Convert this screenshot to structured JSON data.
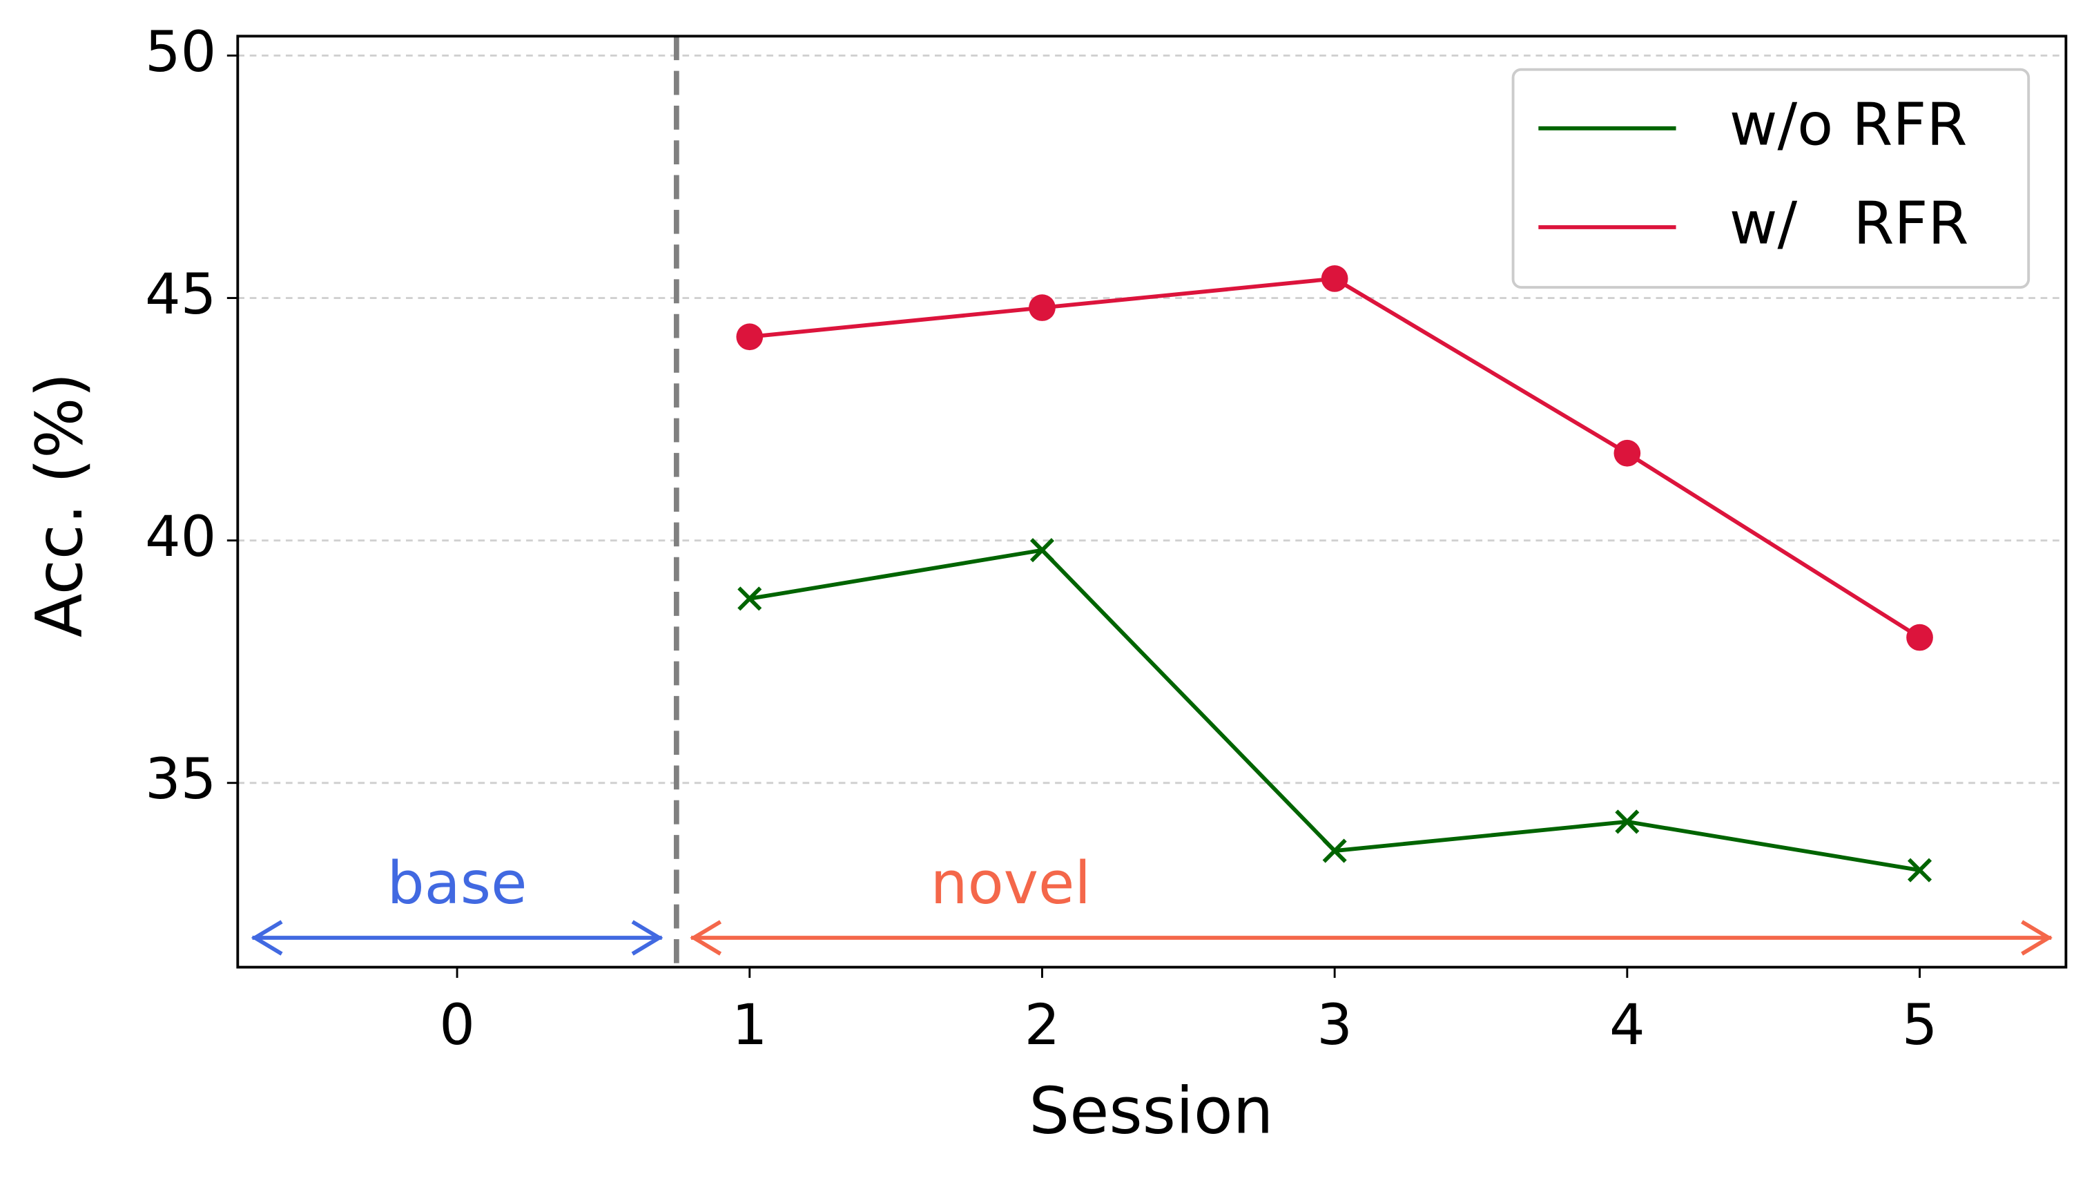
{
  "chart_data": {
    "type": "line",
    "x_label": "Session",
    "y_label": "Acc. (%)",
    "x": [
      1,
      2,
      3,
      4,
      5
    ],
    "series": [
      {
        "name": "w/o RFR",
        "color": "#006400",
        "marker": "x",
        "values": [
          38.8,
          39.8,
          33.6,
          34.2,
          33.2
        ]
      },
      {
        "name": "w/   RFR",
        "color": "#dc143c",
        "marker": "o",
        "values": [
          44.2,
          44.8,
          45.4,
          41.8,
          38.0
        ]
      }
    ],
    "xlim": [
      -0.75,
      5.5
    ],
    "ylim": [
      31.2,
      50.4
    ],
    "xticks": [
      0,
      1,
      2,
      3,
      4,
      5
    ],
    "yticks": [
      35,
      40,
      45,
      50
    ],
    "grid": true,
    "legend": "upper right",
    "divider_x": 0.75,
    "annotations": [
      {
        "text": "base",
        "color": "#4169e1",
        "x": [
          -0.7,
          0.7
        ]
      },
      {
        "text": "novel",
        "color": "#f4674a",
        "x": [
          0.8,
          5.45
        ]
      }
    ]
  }
}
